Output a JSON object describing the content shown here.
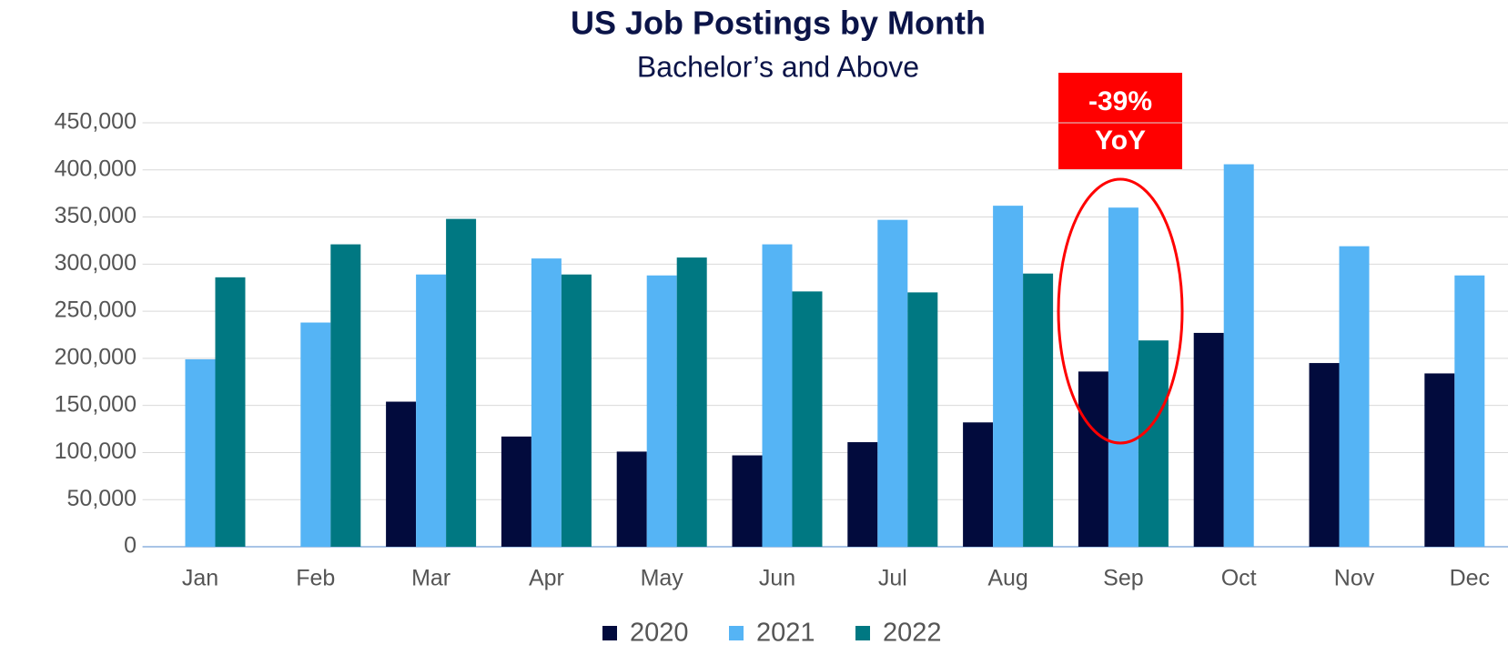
{
  "chart_data": {
    "type": "bar",
    "title": "US Job Postings by Month",
    "subtitle": "Bachelor’s and Above",
    "categories": [
      "Jan",
      "Feb",
      "Mar",
      "Apr",
      "May",
      "Jun",
      "Jul",
      "Aug",
      "Sep",
      "Oct",
      "Nov",
      "Dec"
    ],
    "series": [
      {
        "name": "2020",
        "color": "#020b3d",
        "values": [
          null,
          null,
          154000,
          117000,
          101000,
          97000,
          111000,
          132000,
          186000,
          227000,
          195000,
          184000
        ]
      },
      {
        "name": "2021",
        "color": "#55b4f5",
        "values": [
          199000,
          238000,
          289000,
          306000,
          288000,
          321000,
          347000,
          362000,
          360000,
          406000,
          319000,
          288000
        ]
      },
      {
        "name": "2022",
        "color": "#007882",
        "values": [
          286000,
          321000,
          348000,
          289000,
          307000,
          271000,
          270000,
          290000,
          219000,
          null,
          null,
          null
        ]
      }
    ],
    "ylim": [
      0,
      450000
    ],
    "yticks": [
      0,
      {
        "value": 50000,
        "label": "50,000"
      },
      {
        "value": 100000,
        "label": "100,000"
      },
      {
        "value": 150000,
        "label": "150,000"
      },
      {
        "value": 200000,
        "label": "200,000"
      },
      {
        "value": 250000,
        "label": "250,000"
      },
      {
        "value": 300000,
        "label": "300,000"
      },
      {
        "value": 350000,
        "label": "350,000"
      },
      {
        "value": 400000,
        "label": "400,000"
      },
      {
        "value": 450000,
        "label": "450,000"
      }
    ],
    "grid": true,
    "legend": "bottom",
    "annotation": [
      "-39%",
      "YoY"
    ]
  }
}
